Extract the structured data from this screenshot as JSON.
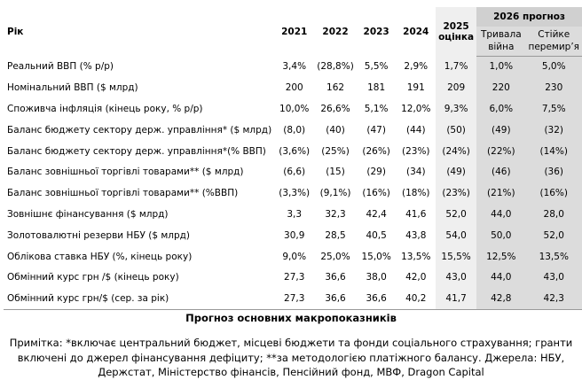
{
  "table": {
    "header": {
      "label": "Рік",
      "years": [
        "2021",
        "2022",
        "2023",
        "2024"
      ],
      "estimate_year": "2025",
      "estimate_label": "оцінка",
      "forecast": "2026 прогноз",
      "scenarios": [
        "Тривала війна",
        "Стійке перемир’я"
      ]
    },
    "rows": [
      {
        "label": "Реальний ВВП (% р/р)",
        "values": [
          "3,4%",
          "(28,8%)",
          "5,5%",
          "2,9%",
          "1,7%",
          "1,0%",
          "5,0%"
        ]
      },
      {
        "label": "Номінальний ВВП ($ млрд)",
        "values": [
          "200",
          "162",
          "181",
          "191",
          "209",
          "220",
          "230"
        ]
      },
      {
        "label": "Споживча інфляція (кінець року, % р/р)",
        "values": [
          "10,0%",
          "26,6%",
          "5,1%",
          "12,0%",
          "9,3%",
          "6,0%",
          "7,5%"
        ]
      },
      {
        "label": "Баланс бюджету сектору держ. управління* ($ млрд)",
        "values": [
          "(8,0)",
          "(40)",
          "(47)",
          "(44)",
          "(50)",
          "(49)",
          "(32)"
        ]
      },
      {
        "label": "Баланс бюджету сектору держ. управління*(% ВВП)",
        "values": [
          "(3,6%)",
          "(25%)",
          "(26%)",
          "(23%)",
          "(24%)",
          "(22%)",
          "(14%)"
        ]
      },
      {
        "label": "Баланс зовнішньої торгівлі товарами** ($ млрд)",
        "values": [
          "(6,6)",
          "(15)",
          "(29)",
          "(34)",
          "(49)",
          "(46)",
          "(36)"
        ]
      },
      {
        "label": "Баланс зовнішньої торгівлі товарами** (%ВВП)",
        "values": [
          "(3,3%)",
          "(9,1%)",
          "(16%)",
          "(18%)",
          "(23%)",
          "(21%)",
          "(16%)"
        ]
      },
      {
        "label": "Зовнішнє фінансування ($ млрд)",
        "values": [
          "3,3",
          "32,3",
          "42,4",
          "41,6",
          "52,0",
          "44,0",
          "28,0"
        ]
      },
      {
        "label": "Золотовалютні резерви НБУ ($ млрд)",
        "values": [
          "30,9",
          "28,5",
          "40,5",
          "43,8",
          "54,0",
          "50,0",
          "52,0"
        ]
      },
      {
        "label": "Облікова ставка НБУ (%, кінець року)",
        "values": [
          "9,0%",
          "25,0%",
          "15,0%",
          "13,5%",
          "15,5%",
          "12,5%",
          "13,5%"
        ]
      },
      {
        "label": "Обмінний курс грн /$ (кінець року)",
        "values": [
          "27,3",
          "36,6",
          "38,0",
          "42,0",
          "43,0",
          "44,0",
          "43,0"
        ]
      },
      {
        "label": "Обмінний курс грн/$ (сер. за рік)",
        "values": [
          "27,3",
          "36,6",
          "36,6",
          "40,2",
          "41,7",
          "42,8",
          "42,3"
        ]
      }
    ]
  },
  "caption": "Прогноз основних макропоказників",
  "note": "Примітка: *включає центральний бюджет, місцеві бюджети та фонди соціального страхування; гранти включені до джерел фінансування дефіциту; **за методологією платіжного балансу. Джерела: НБУ, Держстат, Міністерство фінансів, Пенсійний фонд, МВФ, Dragon Capital"
}
